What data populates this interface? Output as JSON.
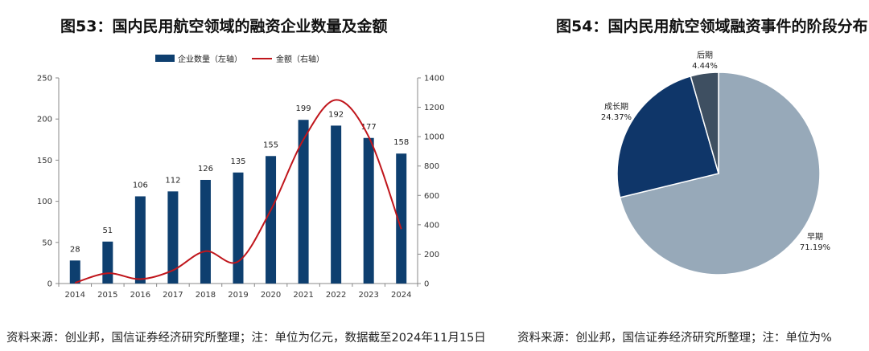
{
  "left_title": "图53：国内民用航空领域的融资企业数量及金额",
  "right_title": "图54：国内民用航空领域融资事件的阶段分布",
  "left_source": "资料来源：创业邦，国信证券经济研究所整理；注：单位为亿元，数据截至2024年11月15日",
  "right_source": "资料来源：创业邦，国信证券经济研究所整理；注：单位为%",
  "chart_data": [
    {
      "type": "bar",
      "categories": [
        "2014",
        "2015",
        "2016",
        "2017",
        "2018",
        "2019",
        "2020",
        "2021",
        "2022",
        "2023",
        "2024"
      ],
      "series": [
        {
          "name": "企业数量（左轴）",
          "kind": "bar",
          "axis": "left",
          "values": [
            28,
            51,
            106,
            112,
            126,
            135,
            155,
            199,
            192,
            177,
            158
          ],
          "color": "#0e3f6f"
        },
        {
          "name": "金额（右轴）",
          "kind": "line",
          "axis": "right",
          "values": [
            5,
            70,
            30,
            90,
            220,
            150,
            500,
            980,
            1250,
            1000,
            370
          ],
          "color": "#c0161c"
        }
      ],
      "y_left_ticks": [
        "0",
        "50",
        "100",
        "150",
        "200",
        "250"
      ],
      "y_right_ticks": [
        "0",
        "200",
        "400",
        "600",
        "800",
        "1000",
        "1200",
        "1400"
      ],
      "ylim_left": [
        0,
        250
      ],
      "ylim_right": [
        0,
        1400
      ],
      "legend_position": "top",
      "grid": false
    },
    {
      "type": "pie",
      "slices": [
        {
          "name": "早期",
          "value": 71.19,
          "label": "71.19%",
          "color": "#97a9b9"
        },
        {
          "name": "成长期",
          "value": 24.37,
          "label": "24.37%",
          "color": "#0f3669"
        },
        {
          "name": "后期",
          "value": 4.44,
          "label": "4.44%",
          "color": "#3e4f61"
        }
      ]
    }
  ]
}
